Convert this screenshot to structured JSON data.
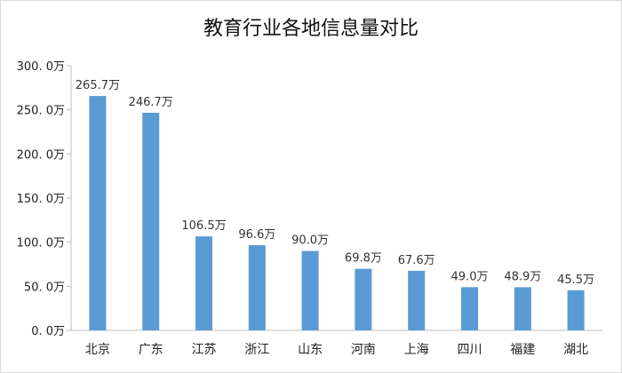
{
  "chart_data": {
    "type": "bar",
    "title": "教育行业各地信息量对比",
    "categories": [
      "北京",
      "广东",
      "江苏",
      "浙江",
      "山东",
      "河南",
      "上海",
      "四川",
      "福建",
      "湖北"
    ],
    "values": [
      265.7,
      246.7,
      106.5,
      96.6,
      90.0,
      69.8,
      67.6,
      49.0,
      48.9,
      45.5
    ],
    "data_labels": [
      "265.7万",
      "246.7万",
      "106.5万",
      "96.6万",
      "90.0万",
      "69.8万",
      "67.6万",
      "49.0万",
      "48.9万",
      "45.5万"
    ],
    "y_ticks": [
      0,
      50,
      100,
      150,
      200,
      250,
      300
    ],
    "y_tick_labels": [
      "0. 0万",
      "50. 0万",
      "100. 0万",
      "150. 0万",
      "200. 0万",
      "250. 0万",
      "300. 0万"
    ],
    "ylim": [
      0,
      300
    ],
    "grid": false,
    "legend": "none",
    "xlabel": "",
    "ylabel": "",
    "bar_color": "#5b9bd5"
  }
}
